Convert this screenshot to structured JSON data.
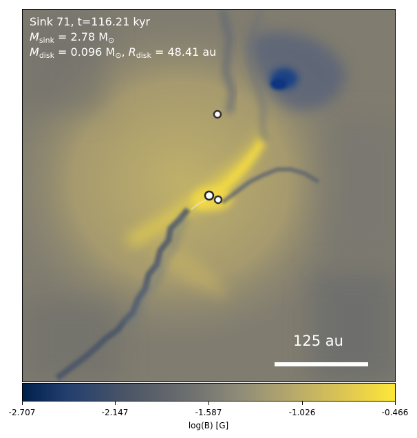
{
  "annotation": {
    "line1": "Sink 71, t=116.21 kyr",
    "msink_sym": "M",
    "msink_sub": "sink",
    "msink_val": " = 2.78 M",
    "msink_unit_sub": "⊙",
    "mdisk_sym": "M",
    "mdisk_sub": "disk",
    "mdisk_val": " = 0.096 M",
    "mdisk_unit_sub": "⊙",
    "rdisk_sep": ", ",
    "rdisk_sym": "R",
    "rdisk_sub": "disk",
    "rdisk_val": " = 48.41 au"
  },
  "scale_bar": {
    "label": "125 au"
  },
  "colorbar": {
    "ticks": [
      "-2.707",
      "-2.147",
      "-1.587",
      "-1.026",
      "-0.466"
    ],
    "label": "log(B) [G]",
    "colormap": "cividis"
  },
  "sinks": [
    {
      "id": "sink-primary"
    },
    {
      "id": "sink-companion"
    },
    {
      "id": "sink-north"
    }
  ]
}
